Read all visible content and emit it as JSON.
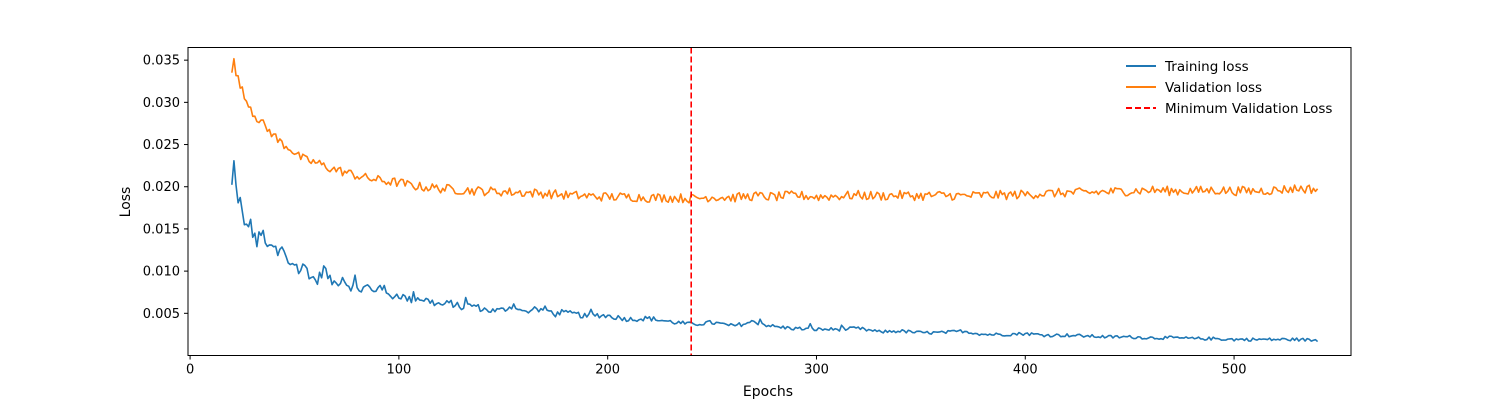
{
  "chart_data": {
    "type": "line",
    "xlabel": "Epochs",
    "ylabel": "Loss",
    "xlim": [
      -1,
      556
    ],
    "ylim": [
      0.0,
      0.0365
    ],
    "x_ticks": [
      0,
      100,
      200,
      300,
      400,
      500
    ],
    "x_tick_labels": [
      "0",
      "100",
      "200",
      "300",
      "400",
      "500"
    ],
    "y_ticks": [
      0.005,
      0.01,
      0.015,
      0.02,
      0.025,
      0.03,
      0.035
    ],
    "y_tick_labels": [
      "0.005",
      "0.010",
      "0.015",
      "0.020",
      "0.025",
      "0.030",
      "0.035"
    ],
    "grid": false,
    "legend_position": "top-right",
    "x_start": 20,
    "x_end": 540,
    "series": [
      {
        "name": "Training loss",
        "color": "#1f77b4",
        "x": [
          20,
          22,
          24,
          26,
          28,
          30,
          32,
          34,
          36,
          38,
          40,
          42,
          44,
          46,
          48,
          50,
          52,
          55,
          58,
          61,
          64,
          67,
          70,
          73,
          76,
          79,
          82,
          85,
          88,
          91,
          95,
          100,
          105,
          110,
          115,
          120,
          125,
          130,
          135,
          140,
          145,
          150,
          155,
          160,
          165,
          170,
          175,
          180,
          185,
          190,
          195,
          200,
          210,
          220,
          230,
          240,
          250,
          260,
          270,
          280,
          290,
          300,
          310,
          320,
          330,
          340,
          350,
          360,
          370,
          380,
          390,
          400,
          410,
          420,
          430,
          440,
          450,
          460,
          470,
          480,
          490,
          500,
          510,
          520,
          530,
          540
        ],
        "values": [
          0.0198,
          0.0197,
          0.0182,
          0.0149,
          0.0159,
          0.0148,
          0.0133,
          0.0144,
          0.014,
          0.0123,
          0.013,
          0.0118,
          0.0127,
          0.0114,
          0.0109,
          0.0111,
          0.01,
          0.0106,
          0.0093,
          0.0088,
          0.0104,
          0.0089,
          0.0085,
          0.0093,
          0.0083,
          0.008,
          0.0078,
          0.0082,
          0.0074,
          0.0086,
          0.007,
          0.0072,
          0.0066,
          0.0068,
          0.0064,
          0.006,
          0.0062,
          0.0057,
          0.006,
          0.0055,
          0.0053,
          0.0054,
          0.006,
          0.0051,
          0.0053,
          0.0055,
          0.0049,
          0.005,
          0.0049,
          0.0046,
          0.0048,
          0.0047,
          0.0043,
          0.0044,
          0.004,
          0.0037,
          0.0039,
          0.0035,
          0.004,
          0.0034,
          0.0032,
          0.0031,
          0.0031,
          0.0032,
          0.0028,
          0.0029,
          0.0027,
          0.0027,
          0.0029,
          0.0025,
          0.0025,
          0.0026,
          0.0024,
          0.0024,
          0.0023,
          0.0022,
          0.0022,
          0.0021,
          0.0021,
          0.002,
          0.002,
          0.0019,
          0.0019,
          0.0019,
          0.0019,
          0.0018
        ]
      },
      {
        "name": "Validation loss",
        "color": "#ff7f0e",
        "x": [
          20,
          21,
          22,
          24,
          26,
          28,
          30,
          32,
          34,
          36,
          38,
          40,
          42,
          44,
          46,
          48,
          50,
          52,
          55,
          58,
          61,
          64,
          67,
          70,
          73,
          76,
          80,
          85,
          90,
          95,
          100,
          105,
          110,
          115,
          120,
          125,
          130,
          140,
          150,
          160,
          170,
          180,
          190,
          200,
          210,
          220,
          230,
          240,
          250,
          260,
          270,
          280,
          290,
          300,
          310,
          320,
          330,
          340,
          350,
          360,
          370,
          380,
          390,
          400,
          410,
          420,
          430,
          440,
          450,
          460,
          470,
          480,
          490,
          500,
          510,
          520,
          530,
          540
        ],
        "values": [
          0.0338,
          0.0348,
          0.0333,
          0.0322,
          0.0305,
          0.03,
          0.0288,
          0.0282,
          0.0278,
          0.027,
          0.0266,
          0.0262,
          0.0255,
          0.0252,
          0.0248,
          0.0246,
          0.024,
          0.0236,
          0.0232,
          0.023,
          0.0228,
          0.0225,
          0.0222,
          0.022,
          0.0218,
          0.0216,
          0.0213,
          0.021,
          0.0208,
          0.0206,
          0.0205,
          0.0202,
          0.02,
          0.0199,
          0.0198,
          0.0197,
          0.0196,
          0.0195,
          0.0194,
          0.0193,
          0.0192,
          0.019,
          0.0189,
          0.0188,
          0.0188,
          0.0187,
          0.0187,
          0.0186,
          0.0188,
          0.0187,
          0.0189,
          0.0188,
          0.019,
          0.0188,
          0.0189,
          0.019,
          0.0189,
          0.019,
          0.0189,
          0.019,
          0.0189,
          0.019,
          0.019,
          0.0191,
          0.0192,
          0.0193,
          0.0193,
          0.0194,
          0.0195,
          0.0196,
          0.0195,
          0.0195,
          0.0196,
          0.0195,
          0.0195,
          0.0196,
          0.0198,
          0.0197
        ]
      }
    ],
    "reference_line": {
      "name": "Minimum Validation Loss",
      "x": 240,
      "color": "#ff0000",
      "style": "dashed"
    }
  }
}
